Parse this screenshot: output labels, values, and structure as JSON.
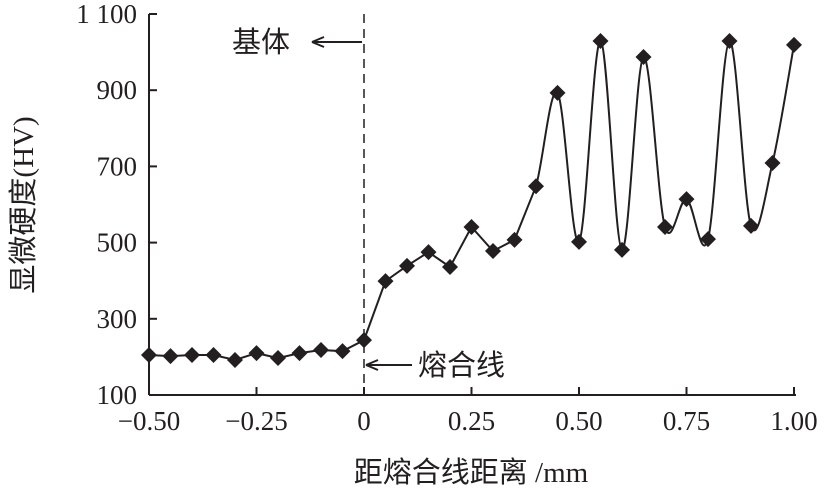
{
  "chart_data": {
    "type": "line",
    "title": "",
    "xlabel": "距熔合线距离 /mm",
    "ylabel": "显微硬度(HV)",
    "xlim": [
      -0.5,
      1.0
    ],
    "ylim": [
      100,
      1100
    ],
    "xticks": [
      -0.5,
      -0.25,
      0,
      0.25,
      0.5,
      0.75,
      1.0
    ],
    "xtick_labels": [
      "−0.50",
      "−0.25",
      "0",
      "0.25",
      "0.50",
      "0.75",
      "1.00"
    ],
    "yticks": [
      100,
      300,
      500,
      700,
      900,
      1100
    ],
    "ytick_labels": [
      "100",
      "300",
      "500",
      "700",
      "900",
      "1 100"
    ],
    "grid": false,
    "marker": "diamond",
    "color": "#231f20",
    "series": [
      {
        "name": "显微硬度",
        "x": [
          -0.5,
          -0.45,
          -0.4,
          -0.35,
          -0.3,
          -0.25,
          -0.2,
          -0.15,
          -0.1,
          -0.05,
          0.0,
          0.05,
          0.1,
          0.15,
          0.2,
          0.25,
          0.3,
          0.35,
          0.4,
          0.45,
          0.5,
          0.55,
          0.6,
          0.65,
          0.7,
          0.75,
          0.8,
          0.85,
          0.9,
          0.95,
          1.0
        ],
        "y": [
          205,
          202,
          205,
          205,
          192,
          210,
          197,
          210,
          218,
          215,
          244,
          399,
          439,
          475,
          436,
          541,
          478,
          507,
          648,
          893,
          502,
          1029,
          481,
          987,
          541,
          614,
          509,
          1029,
          544,
          709,
          1019
        ]
      }
    ],
    "annotations": [
      {
        "text": "基体",
        "x": 0,
        "y": 1045
      },
      {
        "text": "熔合线",
        "x": 0,
        "y": 248
      }
    ],
    "reference_line": {
      "x": 0,
      "style": "dashed"
    }
  }
}
